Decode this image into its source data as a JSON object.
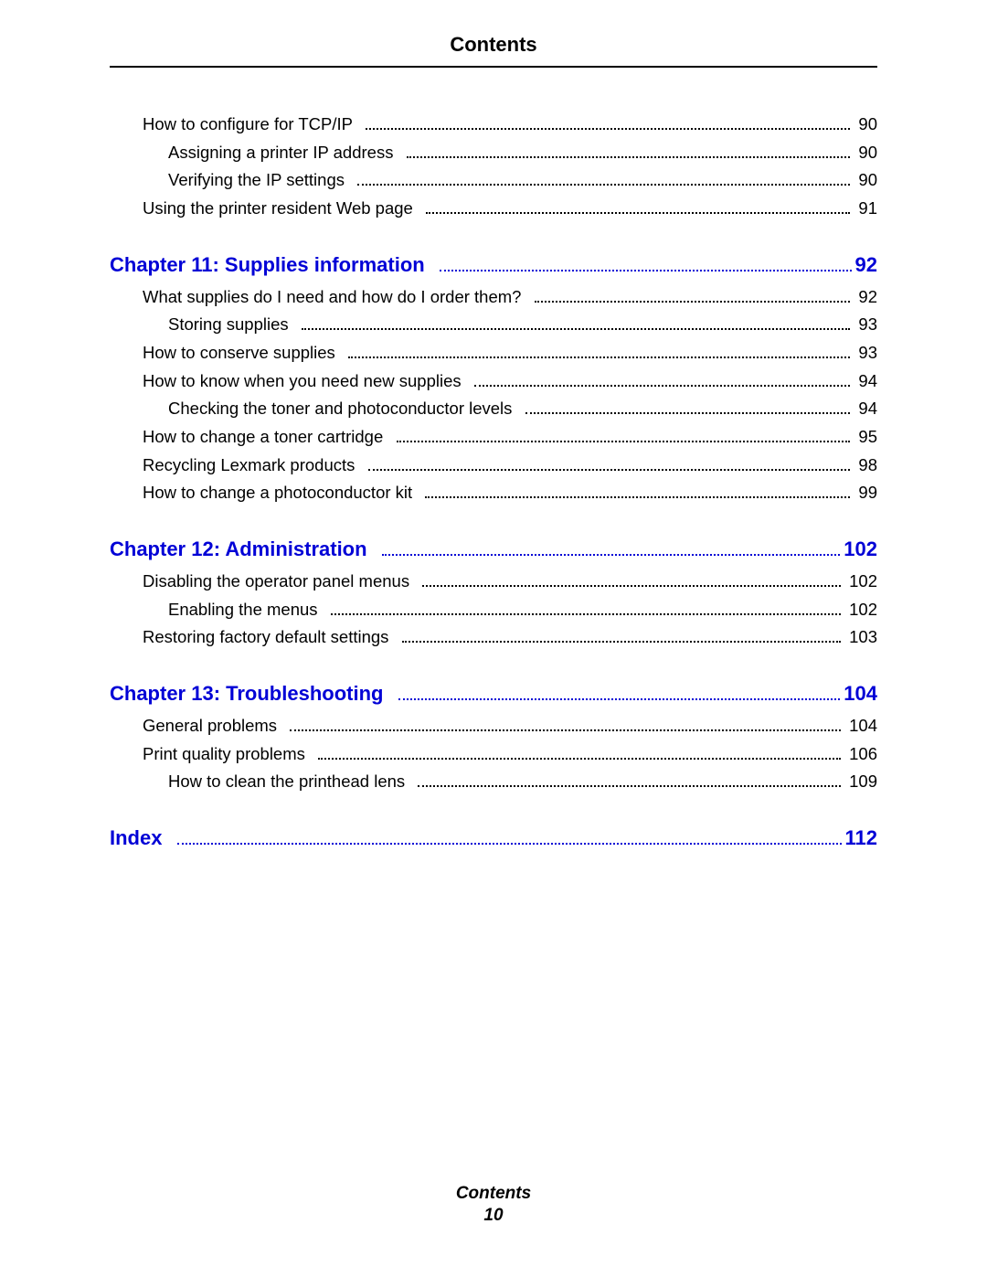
{
  "header_title": "Contents",
  "footer_label": "Contents",
  "footer_page": "10",
  "colors": {
    "link": "#0000d6",
    "text": "#000000",
    "bg": "#ffffff"
  },
  "entries": [
    {
      "type": "item",
      "level": 1,
      "label": "How to configure for TCP/IP",
      "page": "90"
    },
    {
      "type": "item",
      "level": 2,
      "label": "Assigning a printer IP address",
      "page": "90"
    },
    {
      "type": "item",
      "level": 2,
      "label": "Verifying the IP settings",
      "page": "90"
    },
    {
      "type": "item",
      "level": 1,
      "label": "Using the printer resident Web page",
      "page": "91"
    },
    {
      "type": "chapter",
      "label": "Chapter 11:  Supplies information",
      "page": "92"
    },
    {
      "type": "item",
      "level": 1,
      "label": "What supplies do I need and how do I order them?",
      "page": "92"
    },
    {
      "type": "item",
      "level": 2,
      "label": "Storing supplies",
      "page": "93"
    },
    {
      "type": "item",
      "level": 1,
      "label": "How to conserve supplies",
      "page": "93"
    },
    {
      "type": "item",
      "level": 1,
      "label": "How to know when you need new supplies",
      "page": "94"
    },
    {
      "type": "item",
      "level": 2,
      "label": "Checking the toner and photoconductor levels",
      "page": "94"
    },
    {
      "type": "item",
      "level": 1,
      "label": "How to change a toner cartridge",
      "page": "95"
    },
    {
      "type": "item",
      "level": 1,
      "label": "Recycling Lexmark products",
      "page": "98"
    },
    {
      "type": "item",
      "level": 1,
      "label": "How to change a photoconductor kit",
      "page": "99"
    },
    {
      "type": "chapter",
      "label": "Chapter 12:  Administration",
      "page": "102"
    },
    {
      "type": "item",
      "level": 1,
      "label": "Disabling the operator panel menus",
      "page": "102"
    },
    {
      "type": "item",
      "level": 2,
      "label": "Enabling the menus",
      "page": "102"
    },
    {
      "type": "item",
      "level": 1,
      "label": "Restoring factory default settings",
      "page": "103"
    },
    {
      "type": "chapter",
      "label": "Chapter 13:  Troubleshooting",
      "page": "104"
    },
    {
      "type": "item",
      "level": 1,
      "label": "General problems",
      "page": "104"
    },
    {
      "type": "item",
      "level": 1,
      "label": "Print quality problems",
      "page": "106"
    },
    {
      "type": "item",
      "level": 2,
      "label": "How to clean the printhead lens",
      "page": "109"
    },
    {
      "type": "chapter",
      "label": "Index",
      "page": "112"
    }
  ]
}
